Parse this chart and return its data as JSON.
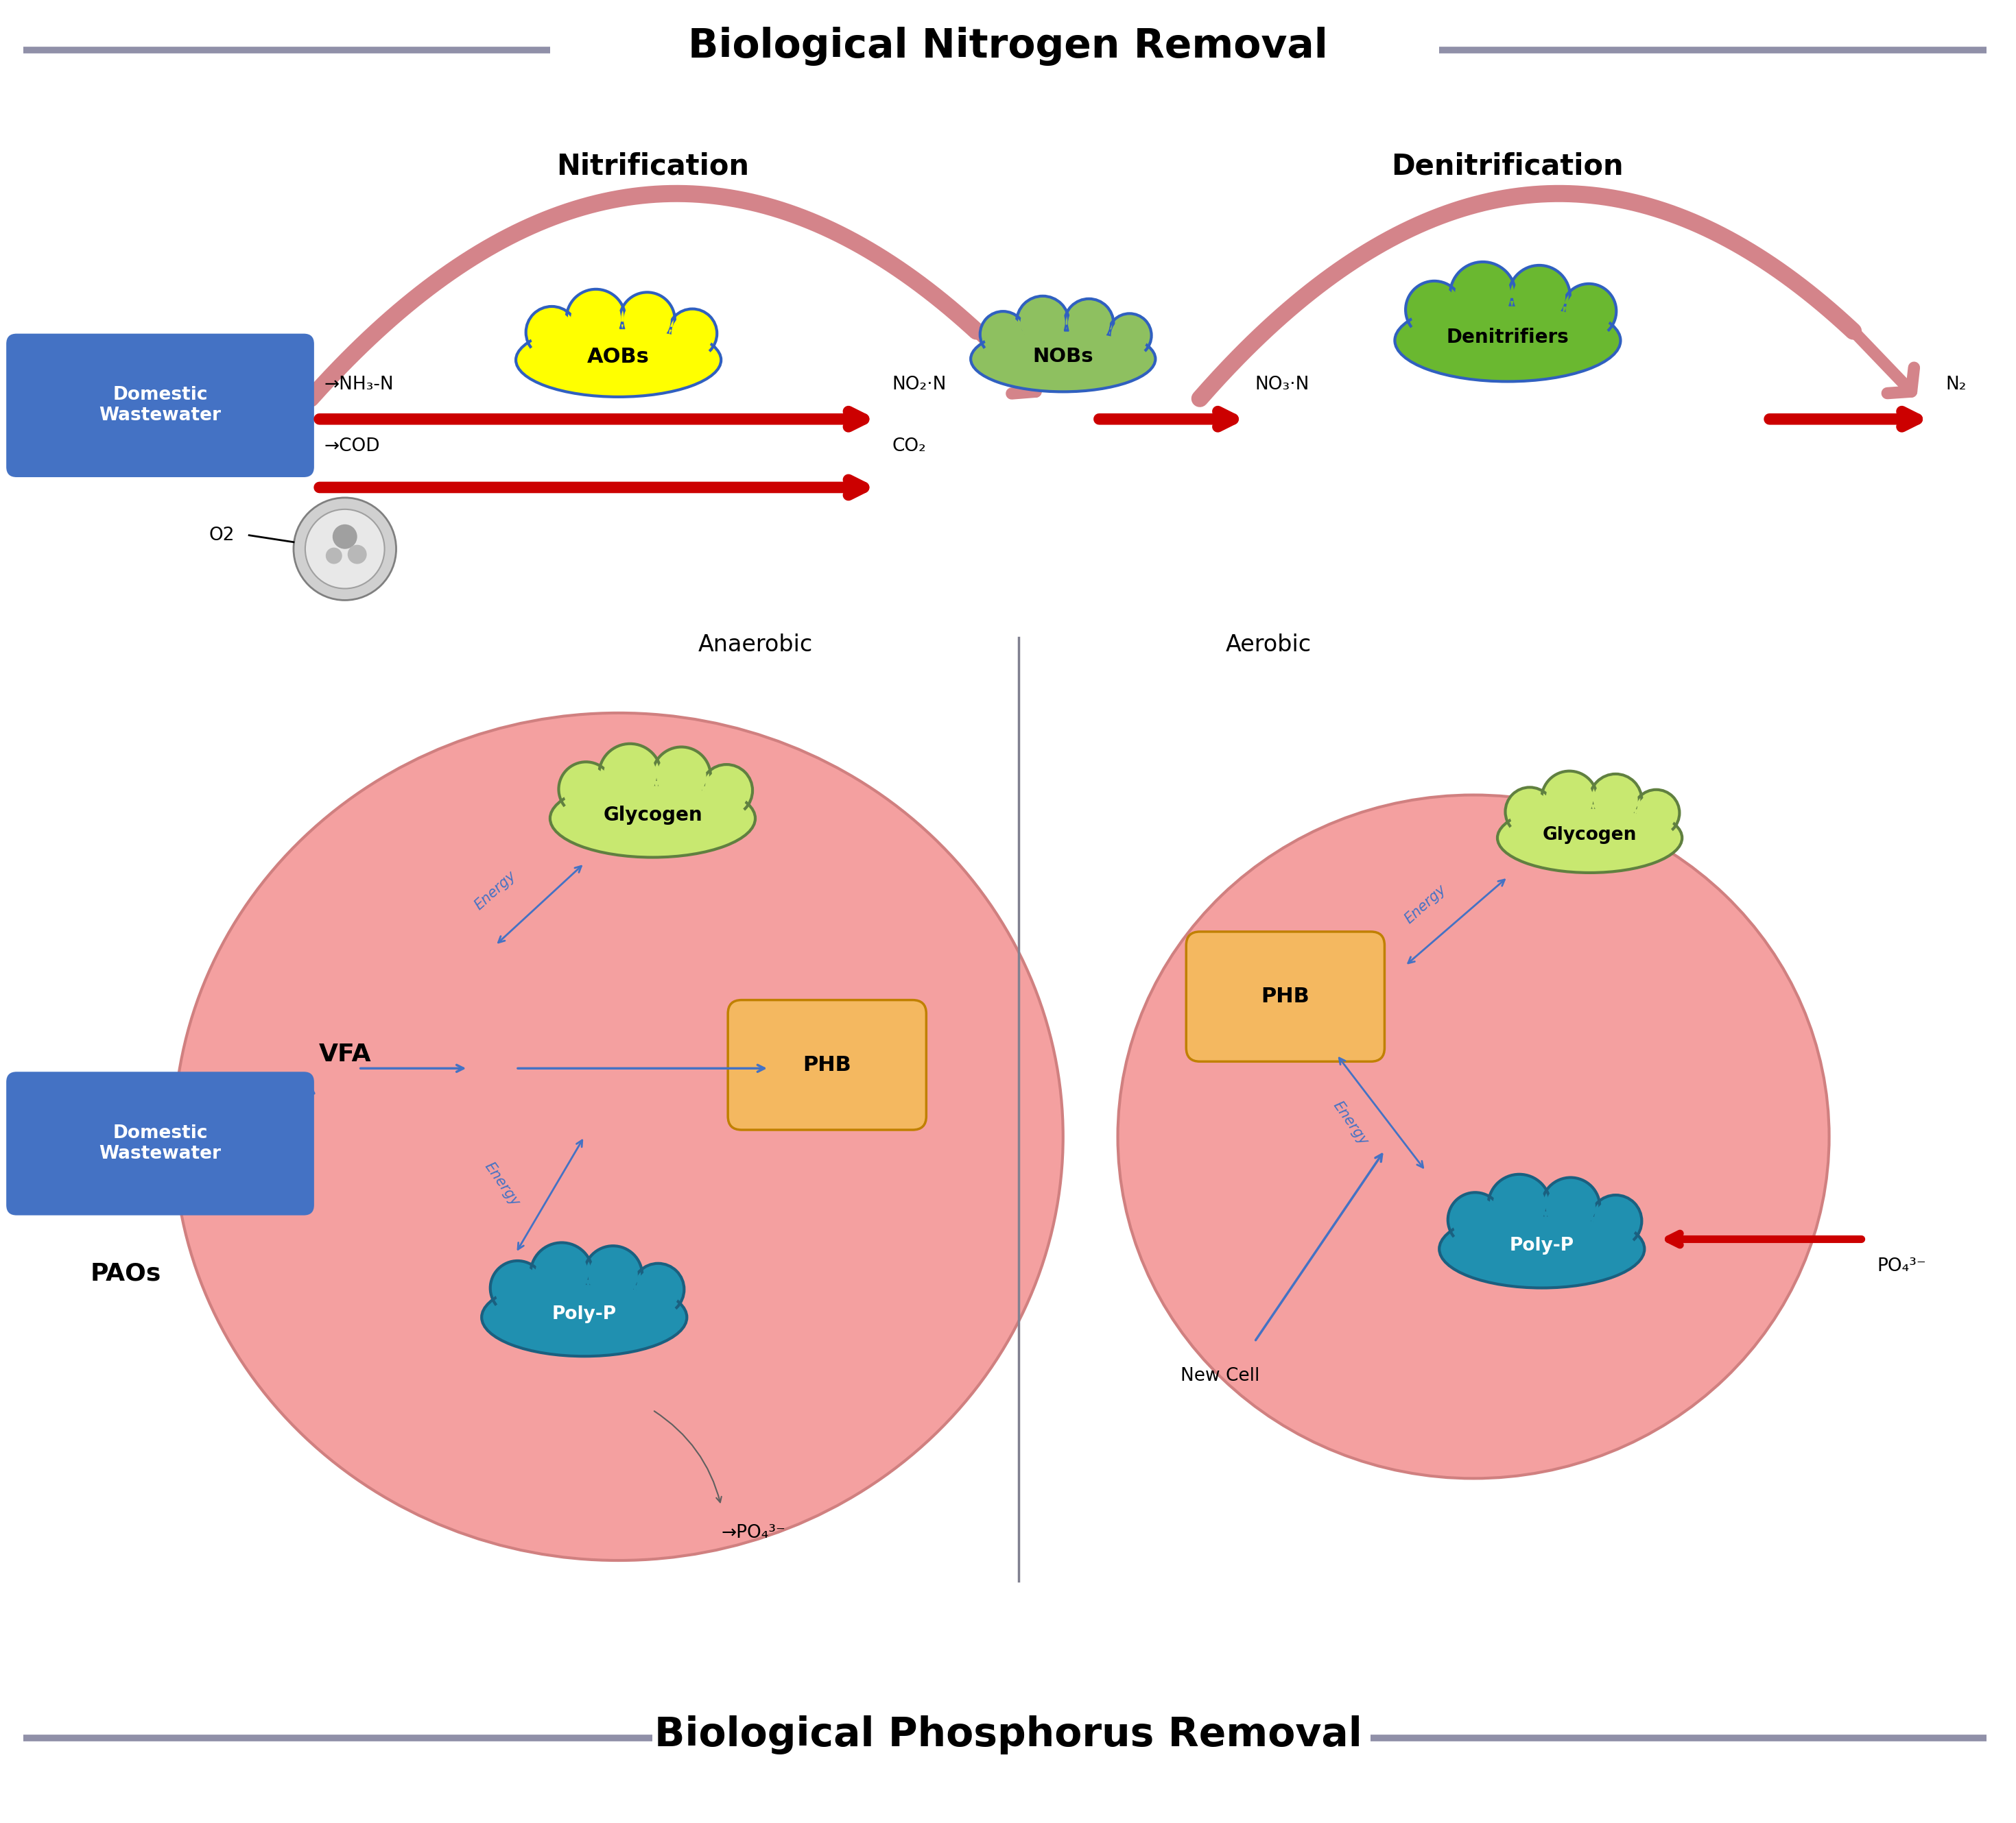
{
  "title_top": "Biological Nitrogen Removal",
  "title_bottom": "Biological Phosphorus Removal",
  "title_fontsize": 42,
  "subtitle_fontsize": 30,
  "bg_color": "#ffffff",
  "nitrification_label": "Nitrification",
  "denitrification_label": "Denitrification",
  "aobs_label": "AOBs",
  "nobs_label": "NOBs",
  "denitrifiers_label": "Denitrifiers",
  "nh3n_label": "NH₃-N",
  "no2n_label": "NO₂·N",
  "no3n_label": "NO₃·N",
  "n2_label": "N₂",
  "cod_label": "COD",
  "co2_label": "CO₂",
  "o2_label": "O2",
  "domestic_wastewater_label": "Domestic\nWastewater",
  "vfa_label": "VFA",
  "paos_label": "PAOs",
  "anaerobic_label": "Anaerobic",
  "aerobic_label": "Aerobic",
  "glycogen_label": "Glycogen",
  "phb_label": "PHB",
  "polyp_label": "Poly-P",
  "po4_label": "PO₄³⁻",
  "energy_label": "Energy",
  "new_cell_label": "New Cell",
  "arrow_red_color": "#cc0000",
  "arrow_pink_color": "#d4848a",
  "cloud_aobs_color": "#ffff00",
  "cloud_nobs_color": "#8ec060",
  "cloud_denitrifiers_color": "#6ab830",
  "cloud_glycogen_color": "#c8e870",
  "cloud_phb_color": "#f4b860",
  "cloud_polyp_color": "#2090b0",
  "circle_cell_color": "#f4a0a0",
  "circle_cell_edge": "#d08080",
  "domestic_box_color": "#4472c4",
  "line_color": "#9090a8",
  "energy_arrow_color": "#4472c4",
  "text_color": "#000000"
}
